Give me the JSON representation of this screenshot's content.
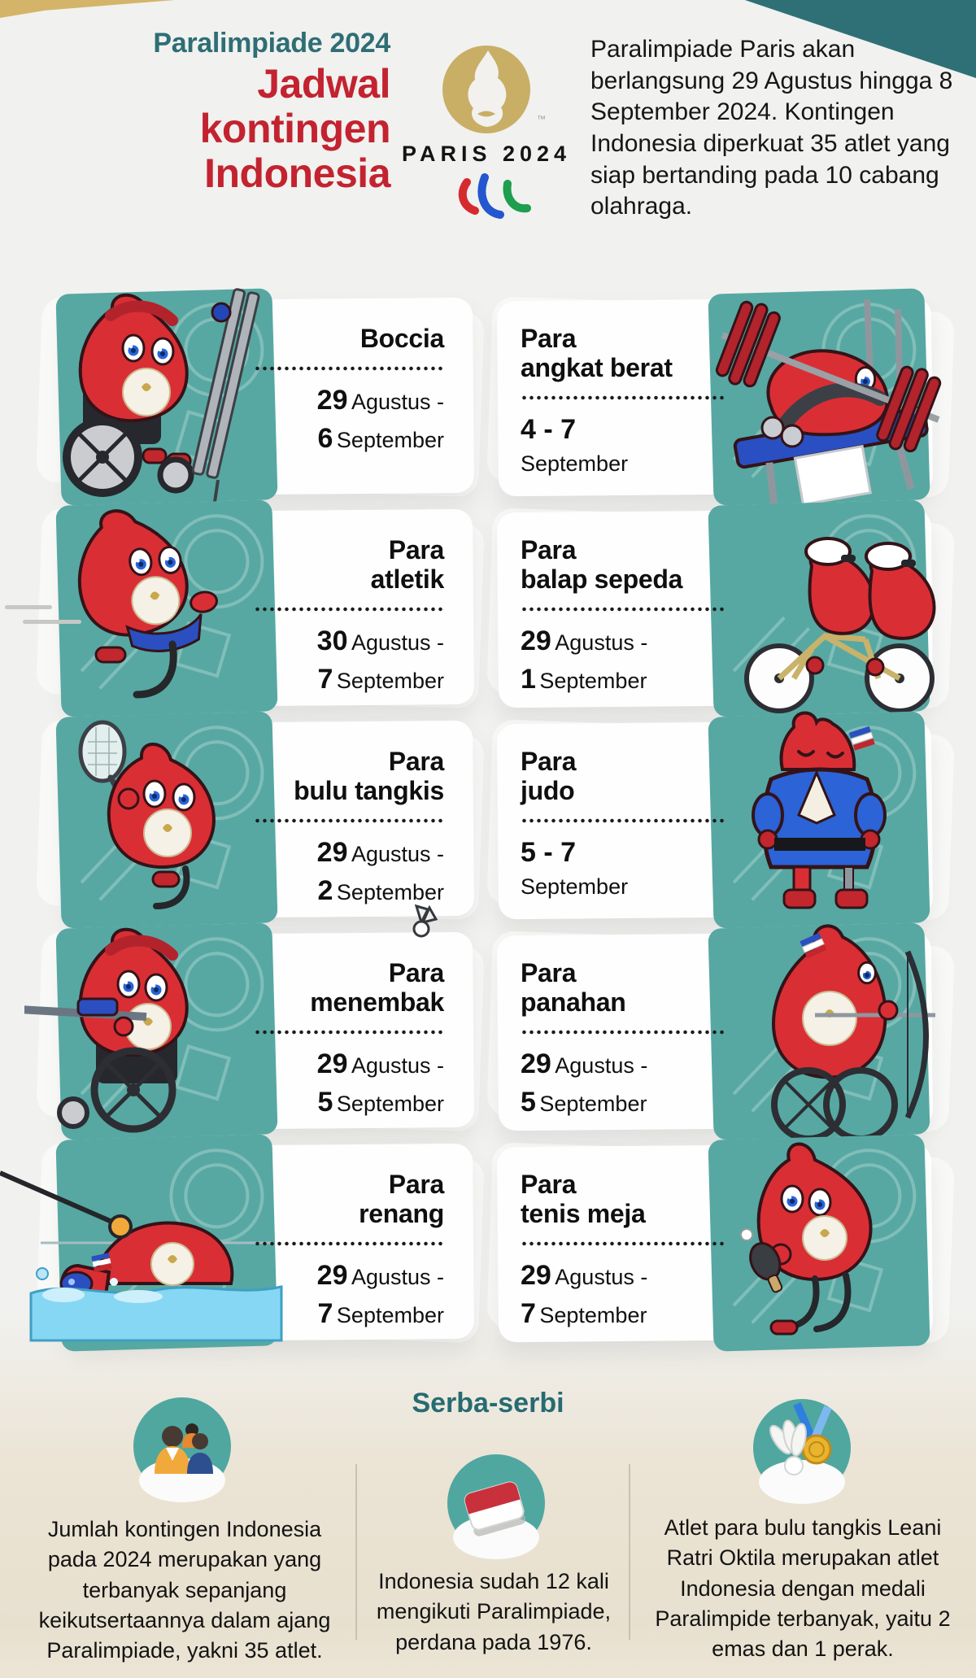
{
  "colors": {
    "accent_teal": "#57a8a2",
    "deep_teal": "#2f7077",
    "title_red": "#c32330",
    "gold": "#d3b469",
    "card_white": "#fefefe",
    "bottom_beige": "#e8e0cf"
  },
  "header": {
    "kicker": "Paralimpiade 2024",
    "title_lines": [
      "Jadwal",
      "kontingen",
      "Indonesia"
    ],
    "logo": {
      "wordmark": "PARIS 2024",
      "tm": "™"
    },
    "intro": "Paralimpiade Paris akan berlangsung 29 Agustus hingga 8 September 2024. Kontingen Indonesia diperkuat 35 atlet yang siap bertanding pada 10 cabang olahraga."
  },
  "schedule": {
    "cards": [
      {
        "sport_lines": [
          "Boccia"
        ],
        "mascot": "boccia",
        "side": "left",
        "d1_num": "29",
        "d1_mon": "Agustus -",
        "d2_num": "6",
        "d2_mon": "September"
      },
      {
        "sport_lines": [
          "Para",
          "angkat berat"
        ],
        "mascot": "powerlifting",
        "side": "right",
        "d1_num": "4 - 7",
        "d1_mon": "",
        "d2_num": "",
        "d2_mon": "September"
      },
      {
        "sport_lines": [
          "Para",
          "atletik"
        ],
        "mascot": "athletics",
        "side": "left",
        "d1_num": "30",
        "d1_mon": "Agustus -",
        "d2_num": "7",
        "d2_mon": "September"
      },
      {
        "sport_lines": [
          "Para",
          "balap sepeda"
        ],
        "mascot": "cycling",
        "side": "right",
        "d1_num": "29",
        "d1_mon": "Agustus -",
        "d2_num": "1",
        "d2_mon": "September"
      },
      {
        "sport_lines": [
          "Para",
          "bulu tangkis"
        ],
        "mascot": "badminton",
        "side": "left",
        "d1_num": "29",
        "d1_mon": "Agustus -",
        "d2_num": "2",
        "d2_mon": "September"
      },
      {
        "sport_lines": [
          "Para",
          "judo"
        ],
        "mascot": "judo",
        "side": "right",
        "d1_num": "5 - 7",
        "d1_mon": "",
        "d2_num": "",
        "d2_mon": "September"
      },
      {
        "sport_lines": [
          "Para",
          "menembak"
        ],
        "mascot": "shooting",
        "side": "left",
        "d1_num": "29",
        "d1_mon": "Agustus -",
        "d2_num": "5",
        "d2_mon": "September"
      },
      {
        "sport_lines": [
          "Para",
          "panahan"
        ],
        "mascot": "archery",
        "side": "right",
        "d1_num": "29",
        "d1_mon": "Agustus -",
        "d2_num": "5",
        "d2_mon": "September"
      },
      {
        "sport_lines": [
          "Para",
          "renang"
        ],
        "mascot": "swimming",
        "side": "left",
        "d1_num": "29",
        "d1_mon": "Agustus -",
        "d2_num": "7",
        "d2_mon": "September"
      },
      {
        "sport_lines": [
          "Para",
          "tenis meja"
        ],
        "mascot": "tabletennis",
        "side": "right",
        "d1_num": "29",
        "d1_mon": "Agustus -",
        "d2_num": "7",
        "d2_mon": "September"
      }
    ]
  },
  "serba": {
    "title": "Serba-serbi",
    "facts": [
      {
        "icon": "people-icon",
        "text": "Jumlah kontingen Indonesia pada 2024 merupakan yang terbanyak sepanjang keikutsertaannya dalam ajang Paralimpiade, yakni 35 atlet."
      },
      {
        "icon": "indonesia-flag-icon",
        "text": "Indonesia sudah 12 kali mengikuti Paralimpiade, perdana pada 1976."
      },
      {
        "icon": "medal-shuttlecock-icon",
        "text": "Atlet para bulu tangkis Leani Ratri Oktila merupakan atlet Indonesia dengan medali Paralimpide terbanyak, yaitu 2 emas dan 1 perak."
      }
    ]
  }
}
